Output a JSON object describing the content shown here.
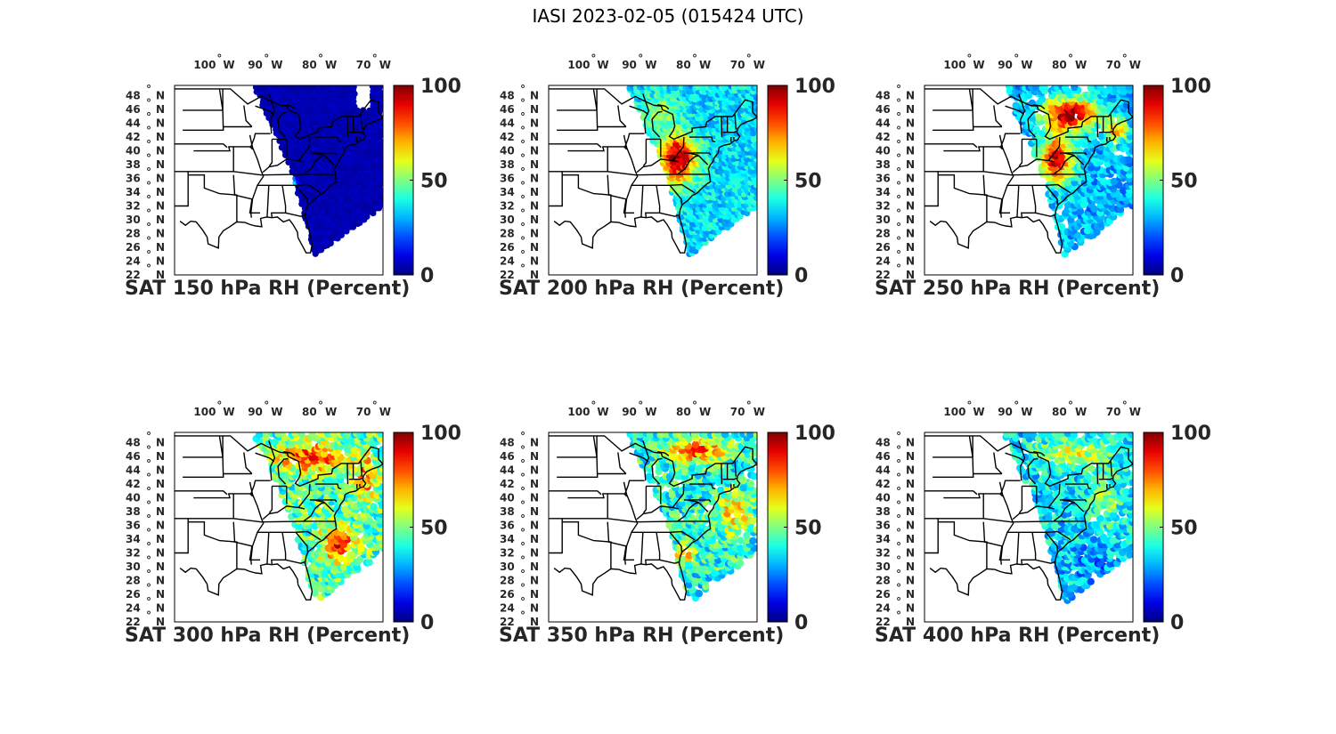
{
  "figure": {
    "title": "IASI 2023-02-05 (015424 UTC)"
  },
  "axes": {
    "lon_ticks": [
      "100",
      "90",
      "80",
      "70"
    ],
    "lon_hemisphere": "W",
    "lat_ticks": [
      "48",
      "46",
      "44",
      "42",
      "40",
      "38",
      "36",
      "34",
      "32",
      "30",
      "28",
      "26",
      "24",
      "22"
    ],
    "lat_hemisphere": "N",
    "degree_symbol": "°",
    "lon_range": [
      -105.5,
      -67
    ],
    "lat_range": [
      22,
      49.5
    ]
  },
  "colorbar": {
    "colormap": "jet",
    "ticks": [
      "100",
      "50",
      "0"
    ],
    "range": [
      0,
      100
    ]
  },
  "panels": [
    {
      "caption": "SAT 150 hPa RH (Percent)",
      "level_hPa": 150,
      "dominant_rh": "very dry (0-10%) across swath, small moist patch near 35N 83W"
    },
    {
      "caption": "SAT 200 hPa RH (Percent)",
      "level_hPa": 200,
      "dominant_rh": "moist band (70-100%) over Ohio Valley / Appalachians, drier (20-40%) elsewhere"
    },
    {
      "caption": "SAT 250 hPa RH (Percent)",
      "level_hPa": 250,
      "dominant_rh": "moist (80-100%) Great Lakes and Mid-Atlantic, dry (10-30%) offshore"
    },
    {
      "caption": "SAT 300 hPa RH (Percent)",
      "level_hPa": 300,
      "dominant_rh": "mixed 30-90%, moist Great Lakes and off Carolinas"
    },
    {
      "caption": "SAT 350 hPa RH (Percent)",
      "level_hPa": 350,
      "dominant_rh": "mixed 20-90%, moist patch near Georgia coast"
    },
    {
      "caption": "SAT 400 hPa RH (Percent)",
      "level_hPa": 400,
      "dominant_rh": "mostly 20-60%, drier offshore"
    }
  ],
  "colors": {
    "text": "#262626",
    "map_lines": "#000000"
  }
}
